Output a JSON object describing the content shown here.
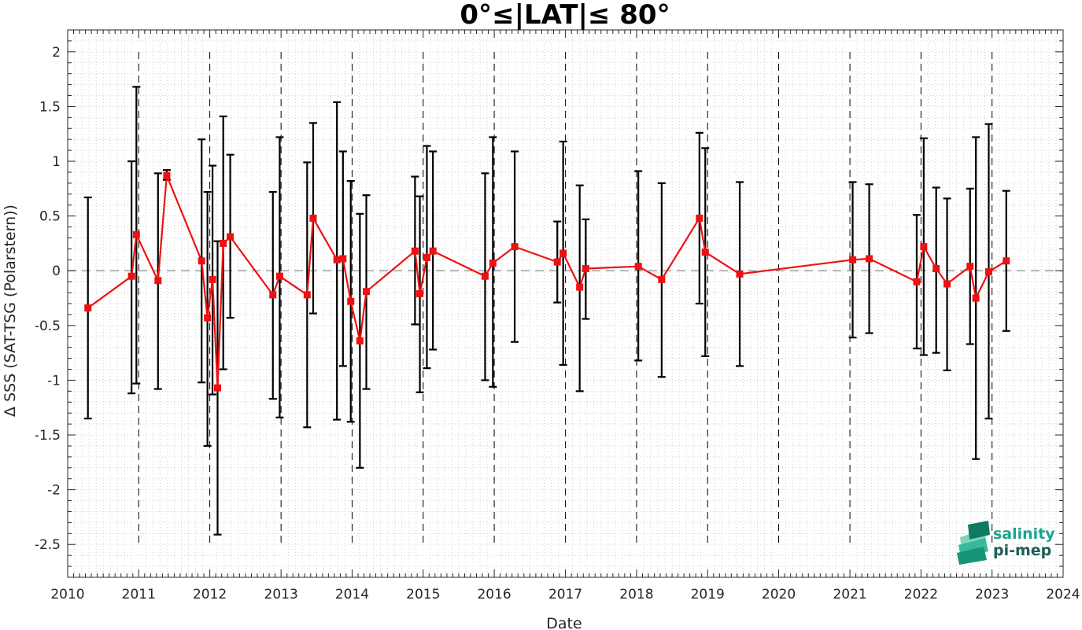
{
  "chart_data": {
    "type": "line",
    "title": "0°≤|LAT|≤ 80°",
    "xlabel": "Date",
    "ylabel": "Δ SSS (SAT-TSG (Polarstern))",
    "xlim": [
      "2010-01-01",
      "2024-01-01"
    ],
    "ylim": [
      -2.8,
      2.2
    ],
    "x_ticks": [
      "2010",
      "2011",
      "2012",
      "2013",
      "2014",
      "2015",
      "2016",
      "2017",
      "2018",
      "2019",
      "2020",
      "2021",
      "2022",
      "2023",
      "2024"
    ],
    "y_ticks": [
      2,
      1.5,
      1,
      0.5,
      0,
      -0.5,
      -1,
      -1.5,
      -2,
      -2.5
    ],
    "y_tick_labels": [
      "2",
      "1.5",
      "1",
      "0.5",
      "0",
      "-0.5",
      "-1",
      "-1.5",
      "-2",
      "-2.5"
    ],
    "grid": "minor dotted",
    "year_boundaries": "dashed vertical lines at each Jan 1 (2011–2023)",
    "zero_line": "dashed horizontal line at 0",
    "series": [
      {
        "color": "#ee1111",
        "marker": "square",
        "errorbar_color": "#000000",
        "points": [
          {
            "x": "2010-04-15",
            "y": -0.34,
            "low": -1.35,
            "high": 0.67
          },
          {
            "x": "2010-11-25",
            "y": -0.05,
            "low": -1.12,
            "high": 1.0
          },
          {
            "x": "2010-12-20",
            "y": 0.33,
            "low": -1.03,
            "high": 1.68
          },
          {
            "x": "2011-04-10",
            "y": -0.09,
            "low": -1.08,
            "high": 0.89
          },
          {
            "x": "2011-05-25",
            "y": 0.87,
            "low": 0.83,
            "high": 0.92
          },
          {
            "x": "2011-11-20",
            "y": 0.09,
            "low": -1.02,
            "high": 1.2
          },
          {
            "x": "2011-12-20",
            "y": -0.43,
            "low": -1.6,
            "high": 0.72
          },
          {
            "x": "2012-01-15",
            "y": -0.08,
            "low": -1.13,
            "high": 0.96
          },
          {
            "x": "2012-02-10",
            "y": -1.07,
            "low": -2.41,
            "high": 0.27
          },
          {
            "x": "2012-03-10",
            "y": 0.25,
            "low": -0.9,
            "high": 1.41
          },
          {
            "x": "2012-04-15",
            "y": 0.31,
            "low": -0.43,
            "high": 1.06
          },
          {
            "x": "2012-11-20",
            "y": -0.22,
            "low": -1.17,
            "high": 0.72
          },
          {
            "x": "2012-12-25",
            "y": -0.05,
            "low": -1.34,
            "high": 1.22
          },
          {
            "x": "2013-05-15",
            "y": -0.22,
            "low": -1.43,
            "high": 0.99
          },
          {
            "x": "2013-06-15",
            "y": 0.48,
            "low": -0.39,
            "high": 1.35
          },
          {
            "x": "2013-10-15",
            "y": 0.1,
            "low": -1.36,
            "high": 1.54
          },
          {
            "x": "2013-11-15",
            "y": 0.11,
            "low": -0.87,
            "high": 1.09
          },
          {
            "x": "2013-12-25",
            "y": -0.28,
            "low": -1.38,
            "high": 0.82
          },
          {
            "x": "2014-02-10",
            "y": -0.64,
            "low": -1.8,
            "high": 0.52
          },
          {
            "x": "2014-03-15",
            "y": -0.19,
            "low": -1.08,
            "high": 0.69
          },
          {
            "x": "2014-11-20",
            "y": 0.18,
            "low": -0.49,
            "high": 0.86
          },
          {
            "x": "2014-12-15",
            "y": -0.21,
            "low": -1.11,
            "high": 0.68
          },
          {
            "x": "2015-01-20",
            "y": 0.12,
            "low": -0.89,
            "high": 1.14
          },
          {
            "x": "2015-02-20",
            "y": 0.18,
            "low": -0.72,
            "high": 1.09
          },
          {
            "x": "2015-11-15",
            "y": -0.05,
            "low": -1.0,
            "high": 0.89
          },
          {
            "x": "2015-12-25",
            "y": 0.07,
            "low": -1.06,
            "high": 1.22
          },
          {
            "x": "2016-04-15",
            "y": 0.22,
            "low": -0.65,
            "high": 1.09
          },
          {
            "x": "2016-11-20",
            "y": 0.08,
            "low": -0.29,
            "high": 0.45
          },
          {
            "x": "2016-12-20",
            "y": 0.16,
            "low": -0.86,
            "high": 1.18
          },
          {
            "x": "2017-03-15",
            "y": -0.15,
            "low": -1.1,
            "high": 0.78
          },
          {
            "x": "2017-04-15",
            "y": 0.02,
            "low": -0.44,
            "high": 0.47
          },
          {
            "x": "2018-01-10",
            "y": 0.04,
            "low": -0.82,
            "high": 0.91
          },
          {
            "x": "2018-05-10",
            "y": -0.08,
            "low": -0.97,
            "high": 0.8
          },
          {
            "x": "2018-11-20",
            "y": 0.48,
            "low": -0.3,
            "high": 1.26
          },
          {
            "x": "2018-12-20",
            "y": 0.17,
            "low": -0.78,
            "high": 1.12
          },
          {
            "x": "2019-06-15",
            "y": -0.03,
            "low": -0.87,
            "high": 0.81
          },
          {
            "x": "2021-01-15",
            "y": 0.1,
            "low": -0.61,
            "high": 0.81
          },
          {
            "x": "2021-04-10",
            "y": 0.11,
            "low": -0.57,
            "high": 0.79
          },
          {
            "x": "2021-12-10",
            "y": -0.1,
            "low": -0.71,
            "high": 0.51
          },
          {
            "x": "2022-01-15",
            "y": 0.22,
            "low": -0.77,
            "high": 1.21
          },
          {
            "x": "2022-03-20",
            "y": 0.02,
            "low": -0.75,
            "high": 0.76
          },
          {
            "x": "2022-05-15",
            "y": -0.12,
            "low": -0.91,
            "high": 0.66
          },
          {
            "x": "2022-09-10",
            "y": 0.04,
            "low": -0.67,
            "high": 0.75
          },
          {
            "x": "2022-10-10",
            "y": -0.25,
            "low": -1.72,
            "high": 1.22
          },
          {
            "x": "2022-12-15",
            "y": -0.01,
            "low": -1.35,
            "high": 1.34
          },
          {
            "x": "2023-03-15",
            "y": 0.09,
            "low": -0.55,
            "high": 0.73
          }
        ]
      }
    ]
  },
  "logo": {
    "line1": "salinity",
    "line2": "pi-mep",
    "color": "#1aa58e"
  }
}
